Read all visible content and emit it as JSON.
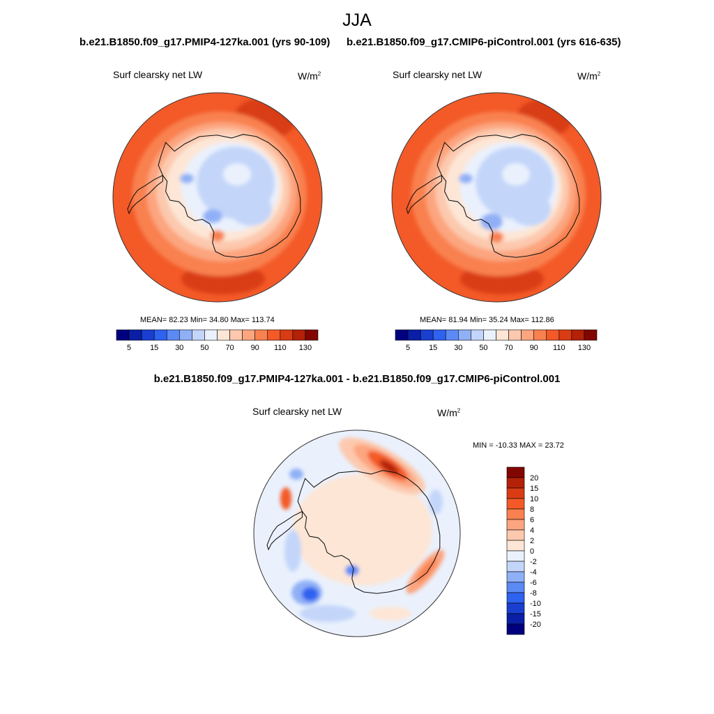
{
  "figure": {
    "season": "JJA",
    "case_a": "b.e21.B1850.f09_g17.PMIP4-127ka.001 (yrs 90-109)",
    "case_b": "b.e21.B1850.f09_g17.CMIP6-piControl.001 (yrs 616-635)",
    "diff_title": "b.e21.B1850.f09_g17.PMIP4-127ka.001 - b.e21.B1850.f09_g17.CMIP6-piControl.001"
  },
  "panels": [
    {
      "variable": "Surf clearsky net LW",
      "units_base": "W/m",
      "units_exp": "2",
      "stats": "MEAN=  82.23  Min=  34.80  Max= 113.74"
    },
    {
      "variable": "Surf clearsky net LW",
      "units_base": "W/m",
      "units_exp": "2",
      "stats": "MEAN=  81.94  Min=  35.24  Max= 112.86"
    },
    {
      "variable": "Surf clearsky net LW",
      "units_base": "W/m",
      "units_exp": "2",
      "stats": "MIN = -10.33 MAX =  23.72"
    }
  ],
  "colorbar_abs": {
    "colors": [
      "#00007f",
      "#0a1fa6",
      "#1a3fd0",
      "#2e62ef",
      "#5b8af5",
      "#8fb0f6",
      "#c3d5f9",
      "#eaf1fd",
      "#fde6d6",
      "#fcc9ae",
      "#fca57f",
      "#f9814f",
      "#f35a28",
      "#d93c15",
      "#b32107",
      "#820600"
    ],
    "labels": [
      "5",
      "15",
      "30",
      "50",
      "70",
      "90",
      "110",
      "130"
    ]
  },
  "colorbar_diff": {
    "colors": [
      "#820600",
      "#b32107",
      "#d93c15",
      "#f35a28",
      "#f9814f",
      "#fca57f",
      "#fcc9ae",
      "#fde6d6",
      "#eaf1fd",
      "#c3d5f9",
      "#8fb0f6",
      "#5b8af5",
      "#2e62ef",
      "#1a3fd0",
      "#0a1fa6",
      "#00007f"
    ],
    "labels": [
      "20",
      "15",
      "10",
      "8",
      "6",
      "4",
      "2",
      "0",
      "-2",
      "-4",
      "-6",
      "-8",
      "-10",
      "-15",
      "-20"
    ]
  }
}
